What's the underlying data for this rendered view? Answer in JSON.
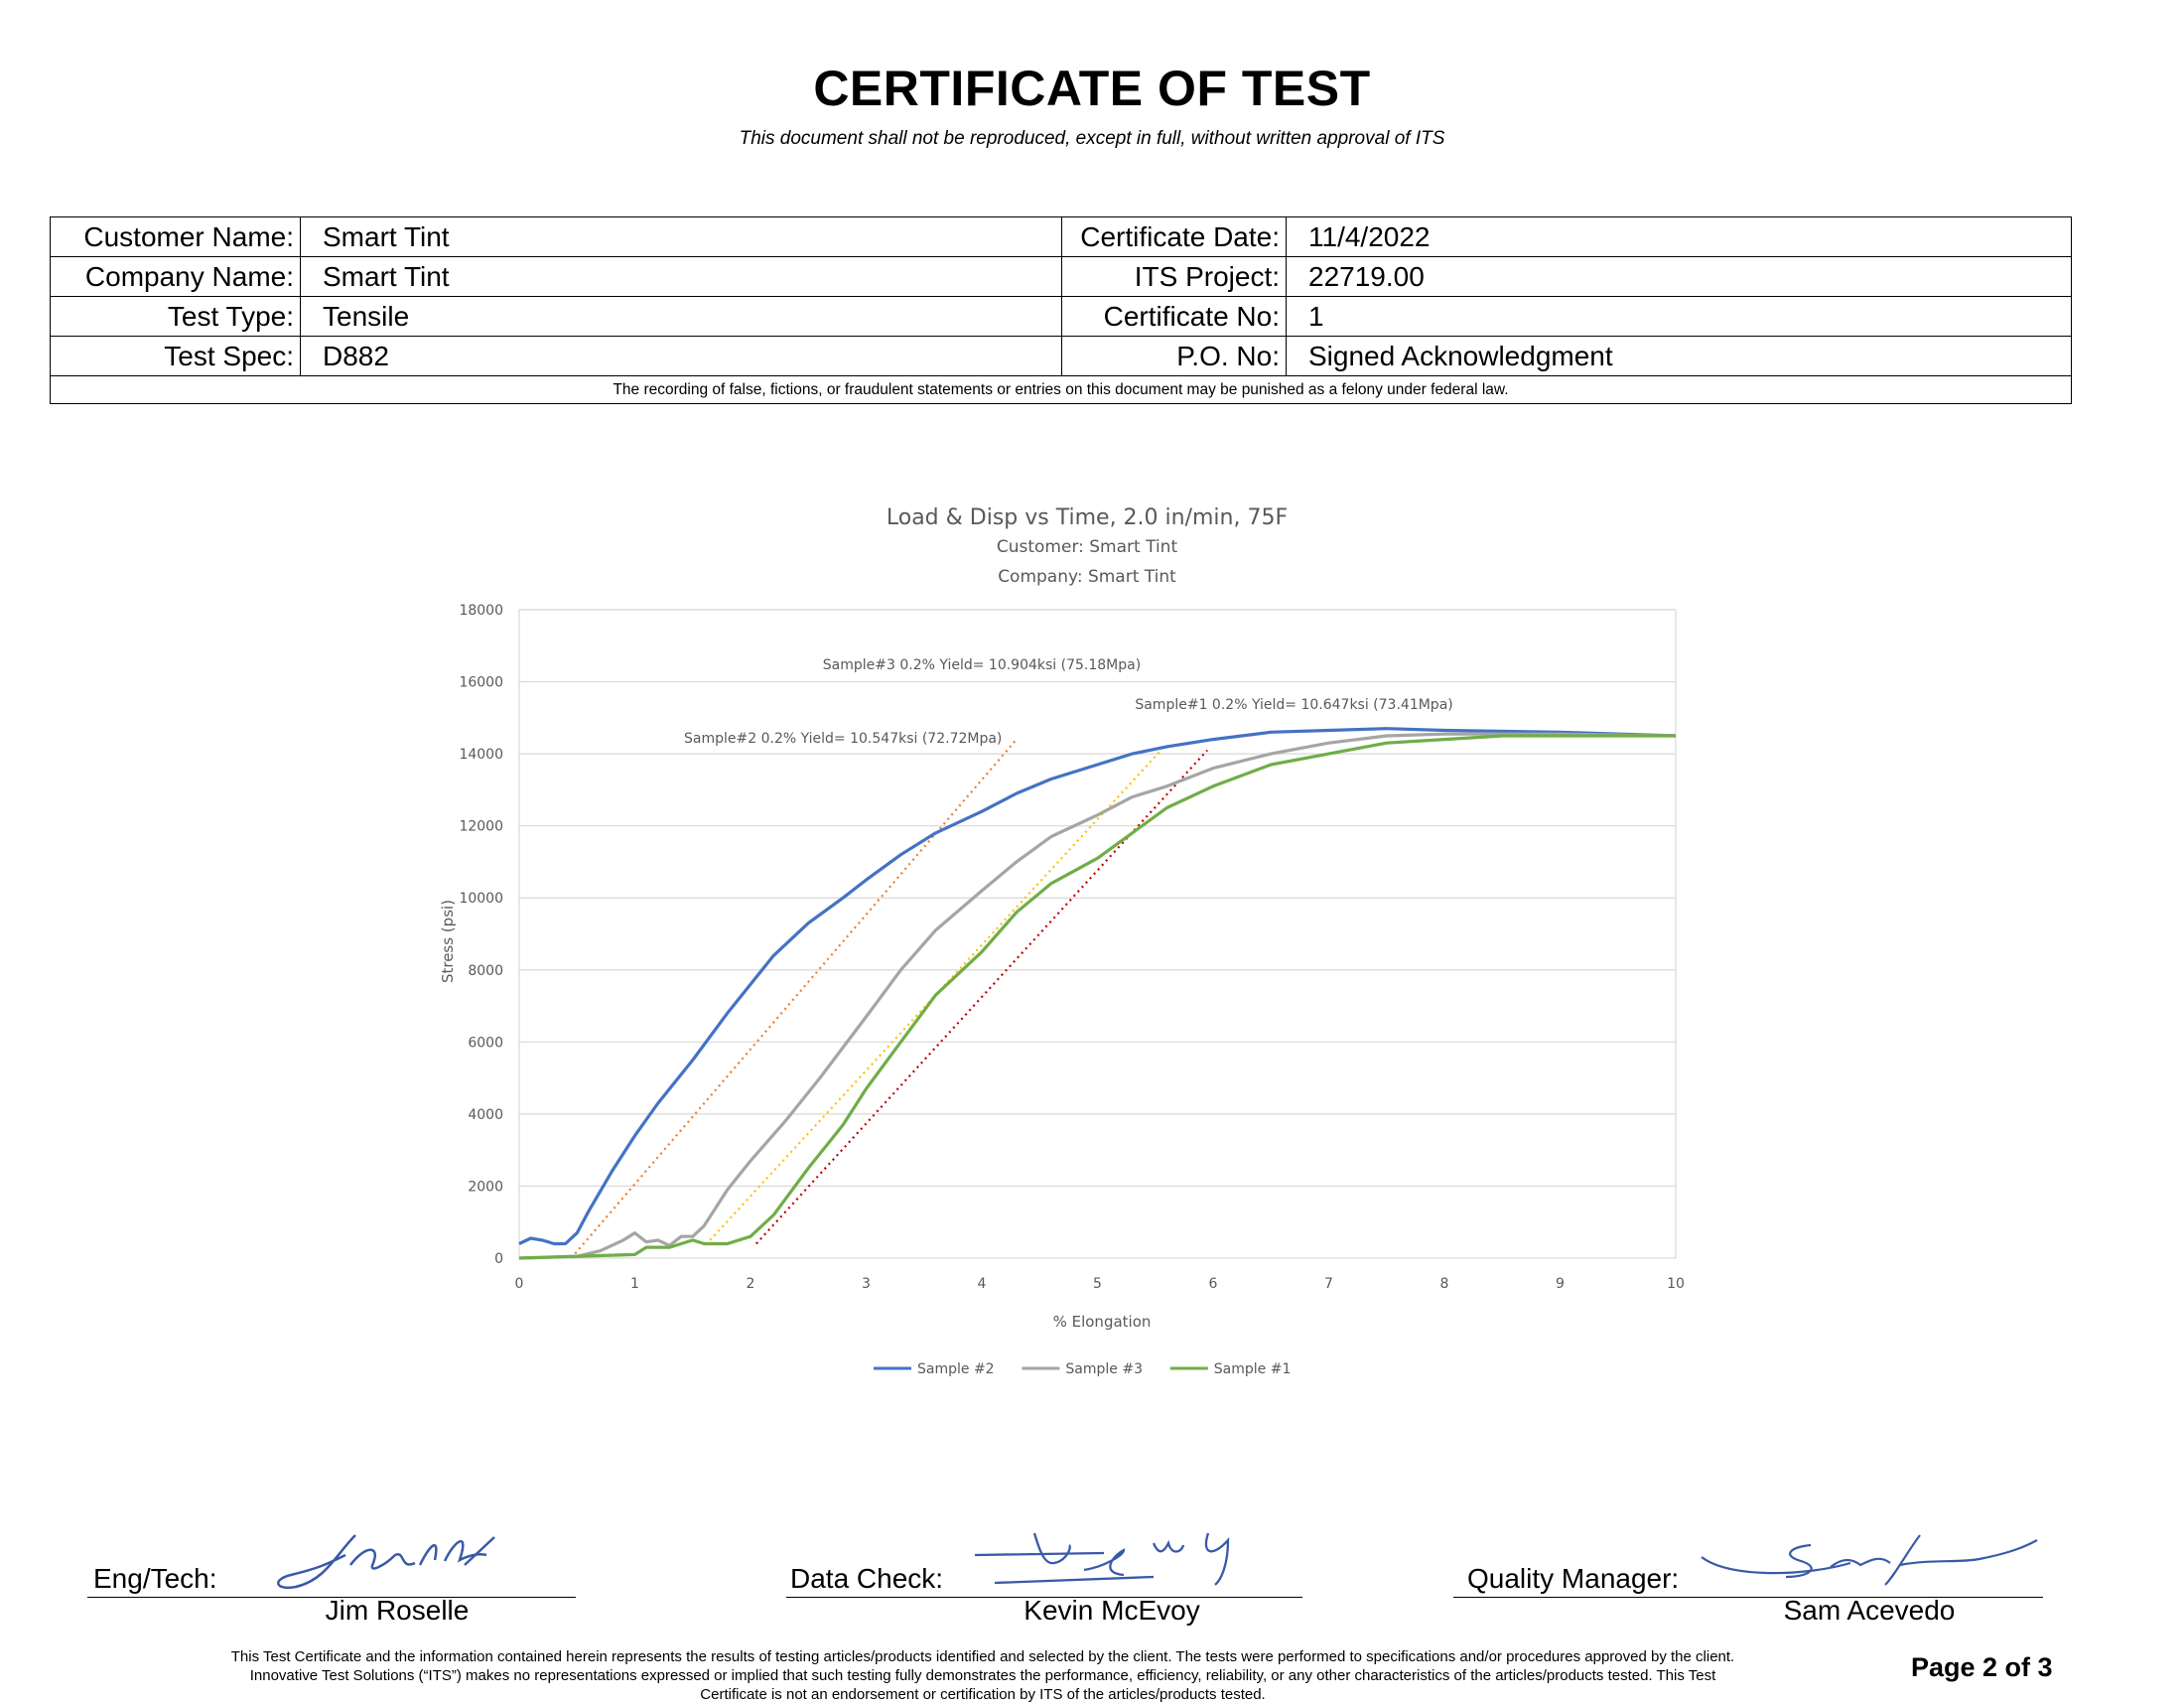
{
  "header": {
    "title": "CERTIFICATE OF TEST",
    "subtitle": "This document shall not be reproduced, except in full, without written approval of ITS"
  },
  "info": {
    "customer_name_label": "Customer Name:",
    "customer_name": "Smart Tint",
    "company_name_label": "Company Name:",
    "company_name": "Smart Tint",
    "test_type_label": "Test Type:",
    "test_type": "Tensile",
    "test_spec_label": "Test Spec:",
    "test_spec": "D882",
    "certificate_date_label": "Certificate Date:",
    "certificate_date": "11/4/2022",
    "its_project_label": "ITS Project:",
    "its_project": "22719.00",
    "certificate_no_label": "Certificate No:",
    "certificate_no": "1",
    "po_no_label": "P.O. No:",
    "po_no": "Signed Acknowledgment",
    "fraud_notice": "The recording of false, fictions, or fraudulent statements or entries on this document may be punished as a felony under federal law."
  },
  "chart_data": {
    "type": "line",
    "title": "Load & Disp vs Time, 2.0 in/min, 75F",
    "subtitle_lines": [
      "Customer: Smart Tint",
      "Company: Smart Tint"
    ],
    "xlabel": "% Elongation",
    "ylabel": "Stress (psi)",
    "xlim": [
      0,
      10
    ],
    "ylim": [
      0,
      18000
    ],
    "x_ticks": [
      0,
      1,
      2,
      3,
      4,
      5,
      6,
      7,
      8,
      9,
      10
    ],
    "y_ticks": [
      0,
      2000,
      4000,
      6000,
      8000,
      10000,
      12000,
      14000,
      16000,
      18000
    ],
    "grid": "horizontal",
    "legend_position": "bottom",
    "series": [
      {
        "name": "Sample #2",
        "color": "#4472c4",
        "x": [
          0,
          0.1,
          0.2,
          0.3,
          0.4,
          0.5,
          0.6,
          0.8,
          1.0,
          1.2,
          1.5,
          1.8,
          2.0,
          2.2,
          2.5,
          2.8,
          3.0,
          3.3,
          3.6,
          4.0,
          4.3,
          4.6,
          5.0,
          5.3,
          5.6,
          6.0,
          6.5,
          7.0,
          7.5,
          8.0,
          9.0,
          10.0
        ],
        "y": [
          400,
          550,
          500,
          400,
          400,
          700,
          1300,
          2400,
          3400,
          4300,
          5500,
          6800,
          7600,
          8400,
          9300,
          10000,
          10500,
          11200,
          11800,
          12400,
          12900,
          13300,
          13700,
          14000,
          14200,
          14400,
          14600,
          14650,
          14700,
          14650,
          14600,
          14500
        ]
      },
      {
        "name": "Sample #3",
        "color": "#a5a5a5",
        "x": [
          0,
          0.5,
          0.7,
          0.9,
          1.0,
          1.1,
          1.2,
          1.3,
          1.4,
          1.5,
          1.6,
          1.8,
          2.0,
          2.3,
          2.6,
          3.0,
          3.3,
          3.6,
          4.0,
          4.3,
          4.6,
          5.0,
          5.3,
          5.6,
          6.0,
          6.5,
          7.0,
          7.5,
          8.0,
          8.5,
          9.0,
          10.0
        ],
        "y": [
          0,
          50,
          200,
          500,
          700,
          450,
          500,
          350,
          600,
          600,
          900,
          1900,
          2700,
          3800,
          5000,
          6700,
          8000,
          9100,
          10200,
          11000,
          11700,
          12300,
          12800,
          13100,
          13600,
          14000,
          14300,
          14500,
          14550,
          14550,
          14550,
          14500
        ]
      },
      {
        "name": "Sample #1",
        "color": "#70ad47",
        "x": [
          0,
          1.0,
          1.1,
          1.3,
          1.5,
          1.6,
          1.8,
          2.0,
          2.2,
          2.5,
          2.8,
          3.0,
          3.3,
          3.6,
          4.0,
          4.3,
          4.6,
          5.0,
          5.3,
          5.6,
          6.0,
          6.5,
          7.0,
          7.5,
          8.0,
          8.5,
          9.0,
          10.0
        ],
        "y": [
          0,
          100,
          300,
          300,
          500,
          400,
          400,
          600,
          1200,
          2500,
          3700,
          4700,
          6000,
          7300,
          8500,
          9600,
          10400,
          11100,
          11800,
          12500,
          13100,
          13700,
          14000,
          14300,
          14400,
          14500,
          14500,
          14500
        ]
      }
    ],
    "offset_lines": [
      {
        "color": "#ed7d31",
        "x": [
          0.45,
          4.3
        ],
        "y": [
          0,
          14400
        ]
      },
      {
        "color": "#ffc000",
        "x": [
          1.65,
          5.55
        ],
        "y": [
          500,
          14100
        ]
      },
      {
        "color": "#c00000",
        "x": [
          2.05,
          5.95
        ],
        "y": [
          400,
          14100
        ]
      }
    ],
    "annotations": [
      {
        "text": "Sample#3 0.2% Yield= 10.904ksi (75.18Mpa)",
        "x": 4.0,
        "y": 16350
      },
      {
        "text": "Sample#1 0.2% Yield= 10.647ksi (73.41Mpa)",
        "x": 6.7,
        "y": 15250
      },
      {
        "text": "Sample#2 0.2% Yield= 10.547ksi (72.72Mpa)",
        "x": 2.8,
        "y": 14300
      }
    ]
  },
  "signatures": {
    "eng_tech_label": "Eng/Tech:",
    "eng_tech_name": "Jim Roselle",
    "data_check_label": "Data Check:",
    "data_check_name": "Kevin McEvoy",
    "quality_manager_label": "Quality Manager:",
    "quality_manager_name": "Sam Acevedo"
  },
  "footer": {
    "disclaimer_line1": "This Test Certificate and the information contained herein represents the results of testing articles/products identified and selected by the client. The tests were performed to specifications and/or procedures approved by the client.",
    "disclaimer_line2": "Innovative Test Solutions (“ITS”) makes no representations expressed or implied that such testing fully demonstrates the performance, efficiency, reliability, or any other characteristics of the articles/products tested. This Test",
    "disclaimer_line3": "Certificate is not an endorsement or certification by ITS of the articles/products tested.",
    "page_label": "Page 2 of 3"
  }
}
